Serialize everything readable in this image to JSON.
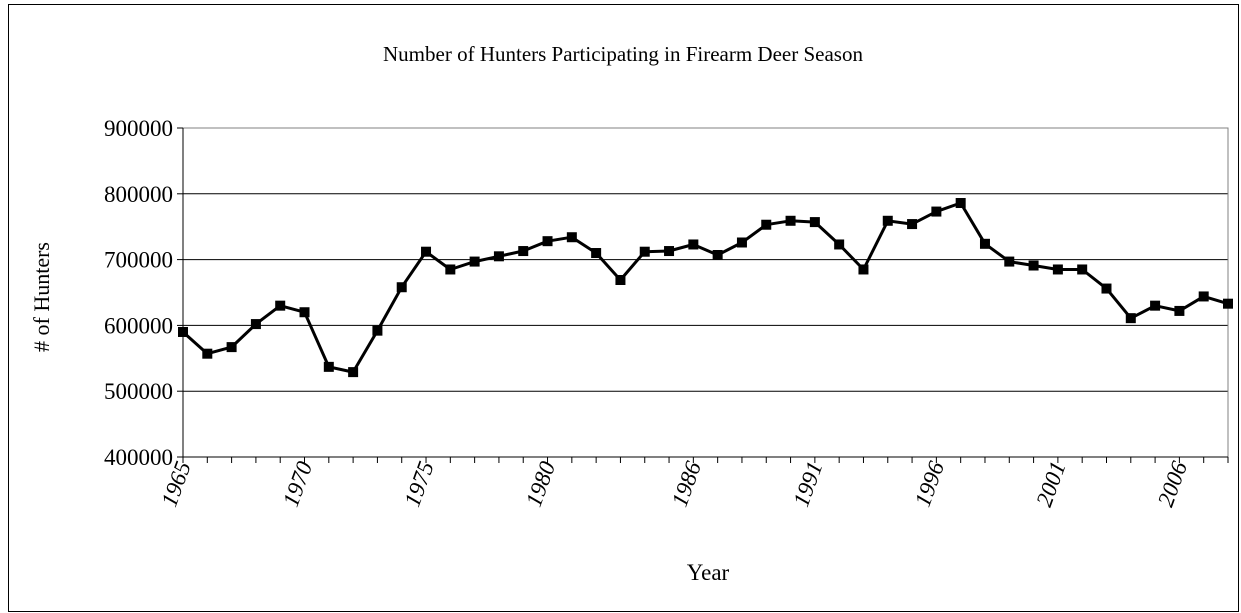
{
  "chart_data": {
    "type": "line",
    "title": "Number of Hunters Participating in Firearm Deer Season",
    "xlabel": "Year",
    "ylabel": "# of Hunters",
    "ylim": [
      400000,
      900000
    ],
    "yticks": [
      "900000",
      "800000",
      "700000",
      "600000",
      "500000",
      "400000"
    ],
    "xticks": [
      "1965",
      "1970",
      "1975",
      "1980",
      "1986",
      "1991",
      "1996",
      "2001",
      "2006"
    ],
    "grid": true,
    "legend": "none",
    "colors": {
      "line": "#000000",
      "marker": "#000000",
      "grid": "#000000"
    },
    "marker": "square",
    "x": [
      1965,
      1966,
      1967,
      1968,
      1969,
      1970,
      1971,
      1972,
      1973,
      1974,
      1975,
      1976,
      1977,
      1978,
      1979,
      1980,
      1981,
      1982,
      1983,
      1984,
      1985,
      1986,
      1987,
      1988,
      1989,
      1990,
      1991,
      1992,
      1993,
      1994,
      1995,
      1996,
      1997,
      1998,
      1999,
      2000,
      2001,
      2002,
      2003,
      2004,
      2005,
      2006,
      2007,
      2008
    ],
    "values": [
      590000,
      557000,
      567000,
      602000,
      630000,
      620000,
      537000,
      529000,
      592000,
      658000,
      712000,
      685000,
      697000,
      705000,
      713000,
      728000,
      734000,
      710000,
      669000,
      712000,
      713000,
      723000,
      707000,
      726000,
      753000,
      759000,
      757000,
      723000,
      685000,
      759000,
      754000,
      773000,
      786000,
      724000,
      697000,
      691000,
      685000,
      685000,
      656000,
      611000,
      630000,
      622000,
      644000,
      633000
    ]
  }
}
